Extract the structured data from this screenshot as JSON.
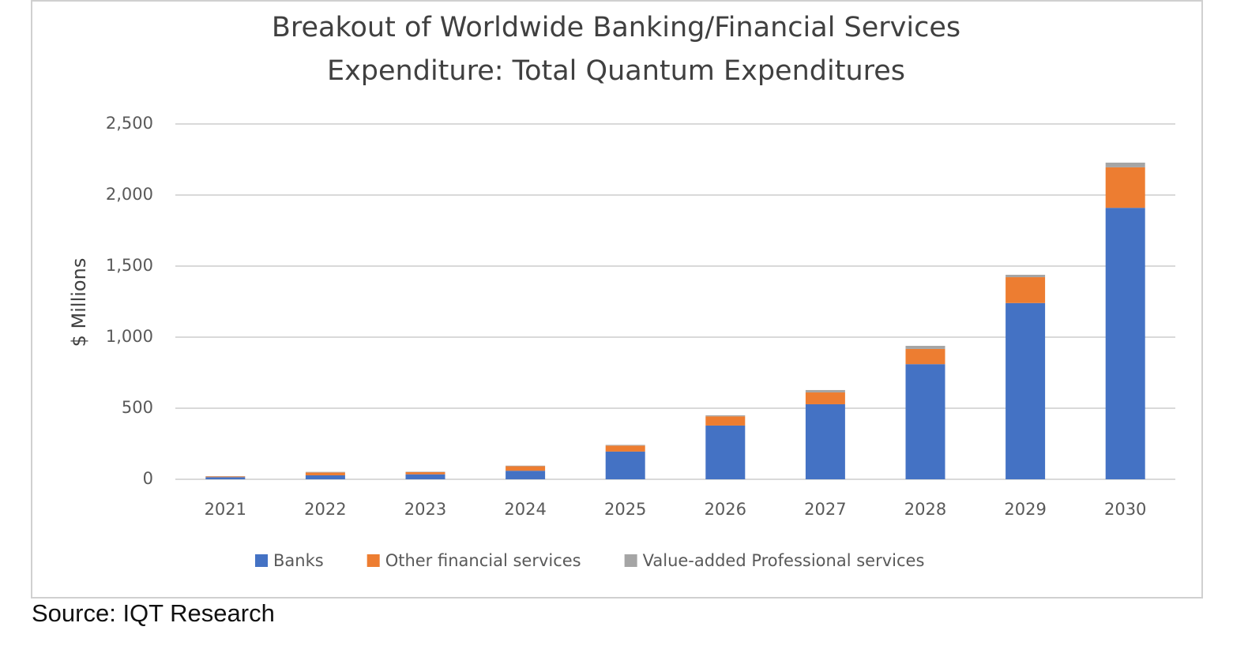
{
  "chart_data": {
    "type": "stacked-bar",
    "title": [
      "Breakout of Worldwide Banking/Financial Services",
      "Expenditure: Total Quantum Expenditures"
    ],
    "y_label": "$ Millions",
    "categories": [
      "2021",
      "2022",
      "2023",
      "2024",
      "2025",
      "2026",
      "2027",
      "2028",
      "2029",
      "2030"
    ],
    "series": [
      {
        "name": "Banks",
        "color": "#4472c4",
        "values": [
          15,
          28,
          35,
          60,
          195,
          378,
          528,
          810,
          1240,
          1910
        ]
      },
      {
        "name": "Other financial services",
        "color": "#ed7d31",
        "values": [
          5,
          20,
          15,
          32,
          42,
          65,
          83,
          107,
          182,
          285
        ]
      },
      {
        "name": "Value-added Professional services",
        "color": "#a5a5a5",
        "values": [
          2,
          4,
          3,
          4,
          5,
          7,
          17,
          22,
          17,
          33
        ]
      }
    ],
    "ylim": [
      0,
      2500
    ],
    "yticks": [
      0,
      500,
      {
        "value": 1000,
        "label": "1,000"
      },
      {
        "value": 1500,
        "label": "1,500"
      },
      {
        "value": 2000,
        "label": "2,000"
      },
      {
        "value": 2500,
        "label": "2,500"
      }
    ],
    "grid": true,
    "legend": "bottom",
    "source": "Source: IQT Research"
  }
}
